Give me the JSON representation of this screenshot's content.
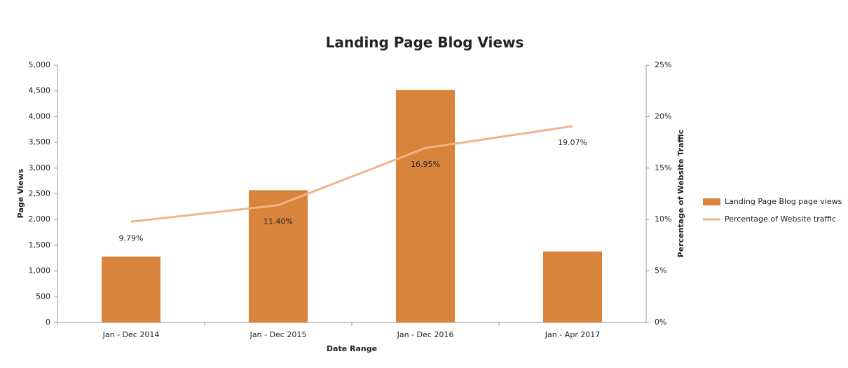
{
  "chart_data": {
    "type": "bar-line",
    "title": "Landing Page Blog Views",
    "x_label": "Date Range",
    "y_label": "Page Views",
    "y2_label": "Percentage of Website Traffic",
    "categories": [
      "Jan - Dec 2014",
      "Jan - Dec 2015",
      "Jan - Dec 2016",
      "Jan - Apr 2017"
    ],
    "series": [
      {
        "name": "Landing Page Blog page views",
        "color": "#d9843c",
        "values": [
          1280,
          2570,
          4520,
          1380
        ]
      },
      {
        "name": "Percentage of Website traffic",
        "color": "#f2b38b",
        "axis": "y2",
        "values": [
          9.79,
          11.4,
          16.95,
          19.07
        ],
        "value_labels": [
          "9.79%",
          "11.40%",
          "16.95%",
          "19.07%"
        ]
      }
    ],
    "ylim": [
      0,
      5000
    ],
    "yticks": [
      0,
      500,
      {
        "value": 1000,
        "label": "1,000"
      },
      {
        "value": 1500,
        "label": "1,500"
      },
      {
        "value": 2000,
        "label": "2,000"
      },
      {
        "value": 2500,
        "label": "2,500"
      },
      {
        "value": 3000,
        "label": "3,000"
      },
      {
        "value": 3500,
        "label": "3,500"
      },
      {
        "value": 4000,
        "label": "4,000"
      },
      {
        "value": 4500,
        "label": "4,500"
      },
      {
        "value": 5000,
        "label": "5,000"
      }
    ],
    "y2lim": [
      0,
      25
    ],
    "y2ticks": [
      {
        "value": 0,
        "label": "0%"
      },
      {
        "value": 5,
        "label": "5%"
      },
      {
        "value": 10,
        "label": "10%"
      },
      {
        "value": 15,
        "label": "15%"
      },
      {
        "value": 20,
        "label": "20%"
      },
      {
        "value": 25,
        "label": "25%"
      }
    ],
    "legend": "right"
  }
}
